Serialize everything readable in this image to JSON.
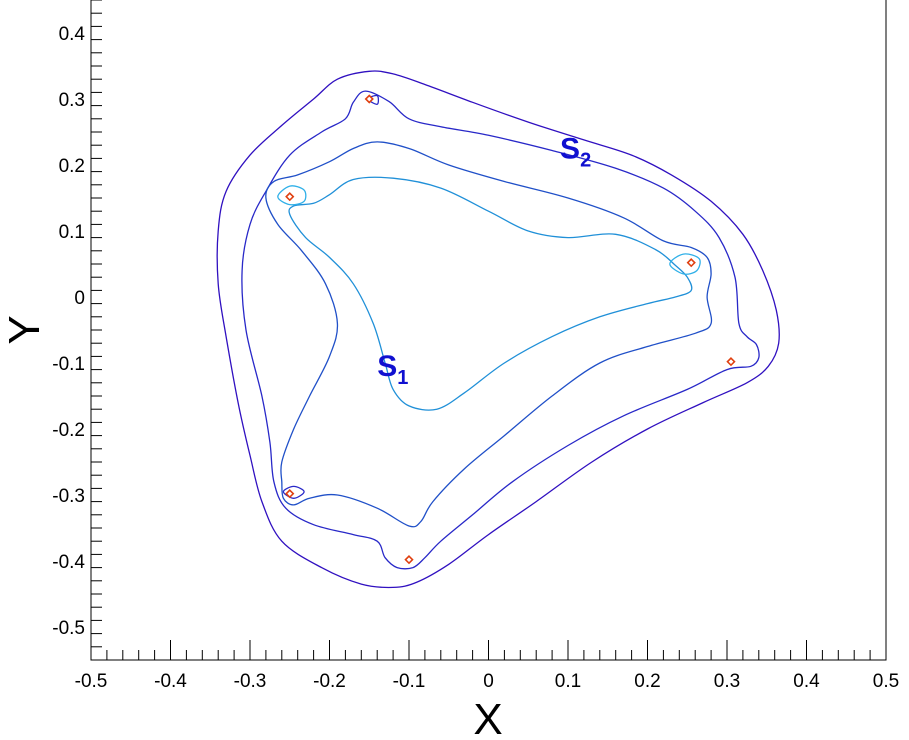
{
  "chart_data": {
    "type": "contour",
    "xlabel": "X",
    "ylabel": "Y",
    "xlim": [
      -0.5,
      0.5
    ],
    "ylim": [
      -0.55,
      0.45
    ],
    "x_ticks": [
      {
        "value": -0.5,
        "label": "-0.5"
      },
      {
        "value": -0.4,
        "label": "-0.4"
      },
      {
        "value": -0.3,
        "label": "-0.3"
      },
      {
        "value": -0.2,
        "label": "-0.2"
      },
      {
        "value": -0.1,
        "label": "-0.1"
      },
      {
        "value": 0,
        "label": "0"
      },
      {
        "value": 0.1,
        "label": "0.1"
      },
      {
        "value": 0.2,
        "label": "0.2"
      },
      {
        "value": 0.3,
        "label": "0.3"
      },
      {
        "value": 0.4,
        "label": "0.4"
      },
      {
        "value": 0.5,
        "label": "0.5"
      }
    ],
    "y_ticks": [
      {
        "value": 0.4,
        "label": "0.4"
      },
      {
        "value": 0.3,
        "label": "0.3"
      },
      {
        "value": 0.2,
        "label": "0.2"
      },
      {
        "value": 0.1,
        "label": "0.1"
      },
      {
        "value": 0,
        "label": "0"
      },
      {
        "value": -0.1,
        "label": "-0.1"
      },
      {
        "value": -0.2,
        "label": "-0.2"
      },
      {
        "value": -0.3,
        "label": "-0.3"
      },
      {
        "value": -0.4,
        "label": "-0.4"
      },
      {
        "value": -0.5,
        "label": "-0.5"
      }
    ],
    "grid": false,
    "series": [
      {
        "color": "#3010c0",
        "points": [
          [
            -0.15,
            0.342
          ],
          [
            -0.12,
            0.338
          ],
          [
            -0.08,
            0.322
          ],
          [
            -0.02,
            0.295
          ],
          [
            0.05,
            0.265
          ],
          [
            0.12,
            0.238
          ],
          [
            0.18,
            0.215
          ],
          [
            0.23,
            0.185
          ],
          [
            0.28,
            0.145
          ],
          [
            0.32,
            0.095
          ],
          [
            0.345,
            0.04
          ],
          [
            0.362,
            -0.02
          ],
          [
            0.365,
            -0.07
          ],
          [
            0.352,
            -0.105
          ],
          [
            0.325,
            -0.13
          ],
          [
            0.27,
            -0.16
          ],
          [
            0.2,
            -0.2
          ],
          [
            0.13,
            -0.25
          ],
          [
            0.06,
            -0.31
          ],
          [
            0.0,
            -0.36
          ],
          [
            -0.05,
            -0.405
          ],
          [
            -0.09,
            -0.432
          ],
          [
            -0.12,
            -0.44
          ],
          [
            -0.16,
            -0.435
          ],
          [
            -0.21,
            -0.41
          ],
          [
            -0.26,
            -0.37
          ],
          [
            -0.285,
            -0.31
          ],
          [
            -0.3,
            -0.24
          ],
          [
            -0.315,
            -0.16
          ],
          [
            -0.33,
            -0.06
          ],
          [
            -0.34,
            0.02
          ],
          [
            -0.34,
            0.1
          ],
          [
            -0.33,
            0.16
          ],
          [
            -0.3,
            0.215
          ],
          [
            -0.26,
            0.26
          ],
          [
            -0.22,
            0.3
          ],
          [
            -0.19,
            0.33
          ],
          [
            -0.15,
            0.342
          ]
        ]
      },
      {
        "color": "#2828c8",
        "points": [
          [
            -0.155,
            0.312
          ],
          [
            -0.125,
            0.296
          ],
          [
            -0.1,
            0.27
          ],
          [
            -0.06,
            0.258
          ],
          [
            0.0,
            0.245
          ],
          [
            0.08,
            0.222
          ],
          [
            0.16,
            0.195
          ],
          [
            0.22,
            0.165
          ],
          [
            0.26,
            0.13
          ],
          [
            0.29,
            0.09
          ],
          [
            0.31,
            0.03
          ],
          [
            0.315,
            -0.04
          ],
          [
            0.325,
            -0.06
          ],
          [
            0.337,
            -0.072
          ],
          [
            0.34,
            -0.092
          ],
          [
            0.33,
            -0.105
          ],
          [
            0.3,
            -0.11
          ],
          [
            0.25,
            -0.14
          ],
          [
            0.17,
            -0.18
          ],
          [
            0.1,
            -0.225
          ],
          [
            0.03,
            -0.28
          ],
          [
            -0.02,
            -0.33
          ],
          [
            -0.06,
            -0.37
          ],
          [
            -0.08,
            -0.395
          ],
          [
            -0.095,
            -0.41
          ],
          [
            -0.115,
            -0.41
          ],
          [
            -0.13,
            -0.395
          ],
          [
            -0.14,
            -0.37
          ],
          [
            -0.17,
            -0.36
          ],
          [
            -0.22,
            -0.345
          ],
          [
            -0.255,
            -0.32
          ],
          [
            -0.27,
            -0.28
          ],
          [
            -0.275,
            -0.22
          ],
          [
            -0.285,
            -0.15
          ],
          [
            -0.305,
            -0.05
          ],
          [
            -0.31,
            0.04
          ],
          [
            -0.3,
            0.11
          ],
          [
            -0.28,
            0.16
          ],
          [
            -0.25,
            0.215
          ],
          [
            -0.21,
            0.25
          ],
          [
            -0.18,
            0.27
          ],
          [
            -0.17,
            0.295
          ],
          [
            -0.155,
            0.312
          ]
        ]
      },
      {
        "color": "#2050c8",
        "points": [
          [
            -0.14,
            0.235
          ],
          [
            -0.1,
            0.225
          ],
          [
            -0.05,
            0.2
          ],
          [
            0.02,
            0.175
          ],
          [
            0.1,
            0.15
          ],
          [
            0.17,
            0.12
          ],
          [
            0.22,
            0.085
          ],
          [
            0.255,
            0.075
          ],
          [
            0.275,
            0.06
          ],
          [
            0.28,
            0.035
          ],
          [
            0.275,
            0.0
          ],
          [
            0.28,
            -0.04
          ],
          [
            0.26,
            -0.055
          ],
          [
            0.2,
            -0.075
          ],
          [
            0.14,
            -0.1
          ],
          [
            0.08,
            -0.15
          ],
          [
            0.02,
            -0.21
          ],
          [
            -0.03,
            -0.26
          ],
          [
            -0.07,
            -0.31
          ],
          [
            -0.085,
            -0.34
          ],
          [
            -0.1,
            -0.347
          ],
          [
            -0.14,
            -0.32
          ],
          [
            -0.19,
            -0.3
          ],
          [
            -0.225,
            -0.305
          ],
          [
            -0.245,
            -0.315
          ],
          [
            -0.258,
            -0.305
          ],
          [
            -0.26,
            -0.28
          ],
          [
            -0.26,
            -0.25
          ],
          [
            -0.245,
            -0.2
          ],
          [
            -0.225,
            -0.15
          ],
          [
            -0.2,
            -0.09
          ],
          [
            -0.19,
            -0.04
          ],
          [
            -0.205,
            0.02
          ],
          [
            -0.235,
            0.07
          ],
          [
            -0.265,
            0.11
          ],
          [
            -0.28,
            0.15
          ],
          [
            -0.27,
            0.175
          ],
          [
            -0.24,
            0.185
          ],
          [
            -0.2,
            0.205
          ],
          [
            -0.17,
            0.225
          ],
          [
            -0.14,
            0.235
          ]
        ]
      },
      {
        "color": "#2090d8",
        "points": [
          [
            -0.17,
            0.178
          ],
          [
            -0.12,
            0.18
          ],
          [
            -0.06,
            0.165
          ],
          [
            0.0,
            0.13
          ],
          [
            0.05,
            0.1
          ],
          [
            0.1,
            0.09
          ],
          [
            0.16,
            0.095
          ],
          [
            0.21,
            0.072
          ],
          [
            0.235,
            0.048
          ],
          [
            0.25,
            0.03
          ],
          [
            0.255,
            0.01
          ],
          [
            0.235,
            0.0
          ],
          [
            0.2,
            -0.01
          ],
          [
            0.14,
            -0.03
          ],
          [
            0.08,
            -0.06
          ],
          [
            0.02,
            -0.1
          ],
          [
            -0.03,
            -0.145
          ],
          [
            -0.065,
            -0.17
          ],
          [
            -0.1,
            -0.165
          ],
          [
            -0.12,
            -0.14
          ],
          [
            -0.13,
            -0.1
          ],
          [
            -0.145,
            -0.04
          ],
          [
            -0.17,
            0.02
          ],
          [
            -0.2,
            0.06
          ],
          [
            -0.23,
            0.09
          ],
          [
            -0.25,
            0.125
          ],
          [
            -0.245,
            0.138
          ],
          [
            -0.22,
            0.142
          ],
          [
            -0.2,
            0.155
          ],
          [
            -0.17,
            0.178
          ]
        ]
      },
      {
        "color": "#30b0e8",
        "points": [
          [
            -0.265,
            0.152
          ],
          [
            -0.25,
            0.168
          ],
          [
            -0.232,
            0.162
          ],
          [
            -0.232,
            0.145
          ],
          [
            -0.25,
            0.14
          ],
          [
            -0.265,
            0.152
          ]
        ]
      },
      {
        "color": "#30b0e8",
        "points": [
          [
            0.228,
            0.05
          ],
          [
            0.245,
            0.065
          ],
          [
            0.265,
            0.058
          ],
          [
            0.262,
            0.04
          ],
          [
            0.245,
            0.035
          ],
          [
            0.228,
            0.05
          ]
        ]
      },
      {
        "color": "#2828c8",
        "points": [
          [
            -0.152,
            0.3
          ],
          [
            -0.14,
            0.292
          ],
          [
            -0.14,
            0.305
          ],
          [
            -0.152,
            0.3
          ]
        ]
      },
      {
        "color": "#2828c8",
        "points": [
          [
            -0.258,
            -0.295
          ],
          [
            -0.245,
            -0.287
          ],
          [
            -0.232,
            -0.295
          ],
          [
            -0.245,
            -0.305
          ],
          [
            -0.258,
            -0.295
          ]
        ]
      }
    ],
    "markers": [
      [
        -0.15,
        0.3
      ],
      [
        -0.25,
        0.152
      ],
      [
        0.255,
        0.052
      ],
      [
        0.305,
        -0.098
      ],
      [
        -0.25,
        -0.298
      ],
      [
        -0.1,
        -0.398
      ]
    ],
    "marker_color": "#e04010",
    "annotations": [
      {
        "base": "S",
        "sub": "2",
        "x": 0.09,
        "y": 0.21,
        "color": "#1010d0"
      },
      {
        "base": "S",
        "sub": "1",
        "x": -0.14,
        "y": -0.12,
        "color": "#1010d0"
      }
    ]
  }
}
